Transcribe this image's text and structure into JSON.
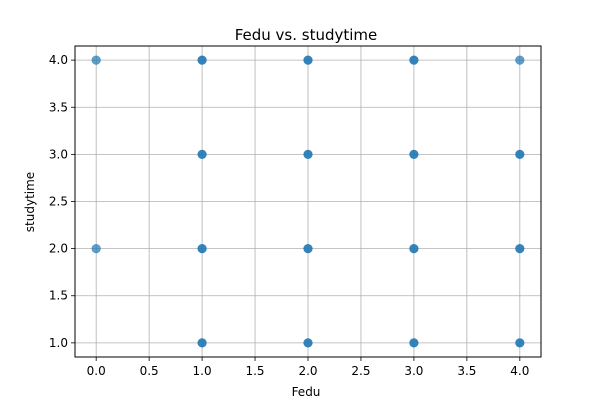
{
  "chart_data": {
    "type": "scatter",
    "title": "Fedu vs. studytime",
    "xlabel": "Fedu",
    "ylabel": "studytime",
    "xlim": [
      -0.2,
      4.2
    ],
    "ylim": [
      0.85,
      4.15
    ],
    "xticks": [
      "0.0",
      "0.5",
      "1.0",
      "1.5",
      "2.0",
      "2.5",
      "3.0",
      "3.5",
      "4.0"
    ],
    "yticks": [
      "1.0",
      "1.5",
      "2.0",
      "2.5",
      "3.0",
      "3.5",
      "4.0"
    ],
    "grid": true,
    "marker_color": "#1f77b4",
    "points": [
      {
        "x": 0,
        "y": 4,
        "w": 1
      },
      {
        "x": 0,
        "y": 2,
        "w": 1
      },
      {
        "x": 1,
        "y": 4,
        "w": 3
      },
      {
        "x": 1,
        "y": 3,
        "w": 3
      },
      {
        "x": 1,
        "y": 2,
        "w": 3
      },
      {
        "x": 1,
        "y": 1,
        "w": 3
      },
      {
        "x": 2,
        "y": 4,
        "w": 3
      },
      {
        "x": 2,
        "y": 3,
        "w": 3
      },
      {
        "x": 2,
        "y": 2,
        "w": 3
      },
      {
        "x": 2,
        "y": 1,
        "w": 3
      },
      {
        "x": 3,
        "y": 4,
        "w": 3
      },
      {
        "x": 3,
        "y": 3,
        "w": 3
      },
      {
        "x": 3,
        "y": 2,
        "w": 3
      },
      {
        "x": 3,
        "y": 1,
        "w": 3
      },
      {
        "x": 4,
        "y": 4,
        "w": 1
      },
      {
        "x": 4,
        "y": 3,
        "w": 3
      },
      {
        "x": 4,
        "y": 2,
        "w": 3
      },
      {
        "x": 4,
        "y": 1,
        "w": 3
      }
    ]
  }
}
